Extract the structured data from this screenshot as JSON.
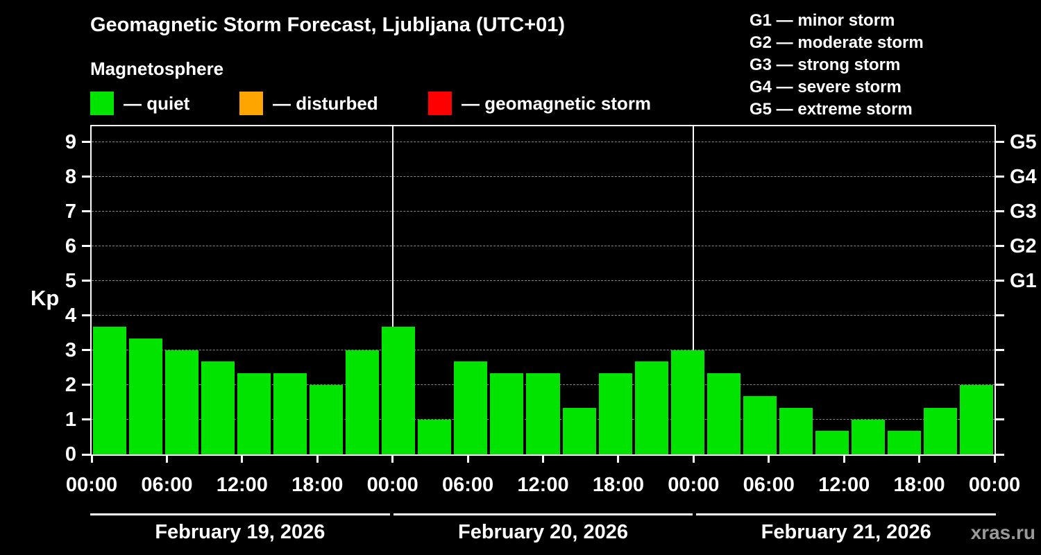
{
  "header": {
    "subtitle": "Magnetosphere"
  },
  "activity_legend": [
    {
      "name": "quiet",
      "label": "— quiet",
      "color": "#00e400"
    },
    {
      "name": "disturbed",
      "label": "— disturbed",
      "color": "#ffa500"
    },
    {
      "name": "storm",
      "label": "— geomagnetic storm",
      "color": "#ff0000"
    }
  ],
  "g_scale_legend": [
    "G1 — minor storm",
    "G2 — moderate storm",
    "G3 — strong storm",
    "G4 — severe storm",
    "G5 — extreme storm"
  ],
  "watermark": "xras.ru",
  "chart_data": {
    "type": "bar",
    "title": "Geomagnetic Storm Forecast, Ljubljana (UTC+01)",
    "ylabel": "Kp",
    "ylim": [
      0,
      9
    ],
    "y_ticks": [
      0,
      1,
      2,
      3,
      4,
      5,
      6,
      7,
      8,
      9
    ],
    "right_axis": [
      {
        "label": "G1",
        "kp": 5
      },
      {
        "label": "G2",
        "kp": 6
      },
      {
        "label": "G3",
        "kp": 7
      },
      {
        "label": "G4",
        "kp": 8
      },
      {
        "label": "G5",
        "kp": 9
      }
    ],
    "hours_total": 72,
    "bar_step_hours": 3,
    "x_tick_step_hours": 6,
    "x_tick_labels": [
      "00:00",
      "06:00",
      "12:00",
      "18:00",
      "00:00",
      "06:00",
      "12:00",
      "18:00",
      "00:00",
      "06:00",
      "12:00",
      "18:00",
      "00:00"
    ],
    "day_boundaries_hours": [
      24,
      48
    ],
    "dates": [
      "February 19, 2026",
      "February 20, 2026",
      "February 21, 2026"
    ],
    "series": [
      {
        "name": "Kp forecast",
        "start_hour": 0,
        "values": [
          3.67,
          3.33,
          3.0,
          2.67,
          2.33,
          2.33,
          2.0,
          3.0,
          3.67,
          1.0,
          2.67,
          2.33,
          2.33,
          1.33,
          2.33,
          2.67,
          3.0,
          2.33,
          1.67,
          1.33,
          0.67,
          1.0,
          0.67,
          1.33,
          2.0
        ]
      }
    ],
    "color_rules": {
      "quiet_below": 4,
      "storm_from": 5
    },
    "grid": "horizontal-dashed",
    "legend_position": "top-left and top-right",
    "colors": {
      "bar_quiet": "#00e400",
      "bar_disturbed": "#ffa500",
      "bar_storm": "#ff0000",
      "axis": "#ffffff",
      "grid": "#888888",
      "background": "#000000",
      "watermark": "#999999"
    }
  }
}
